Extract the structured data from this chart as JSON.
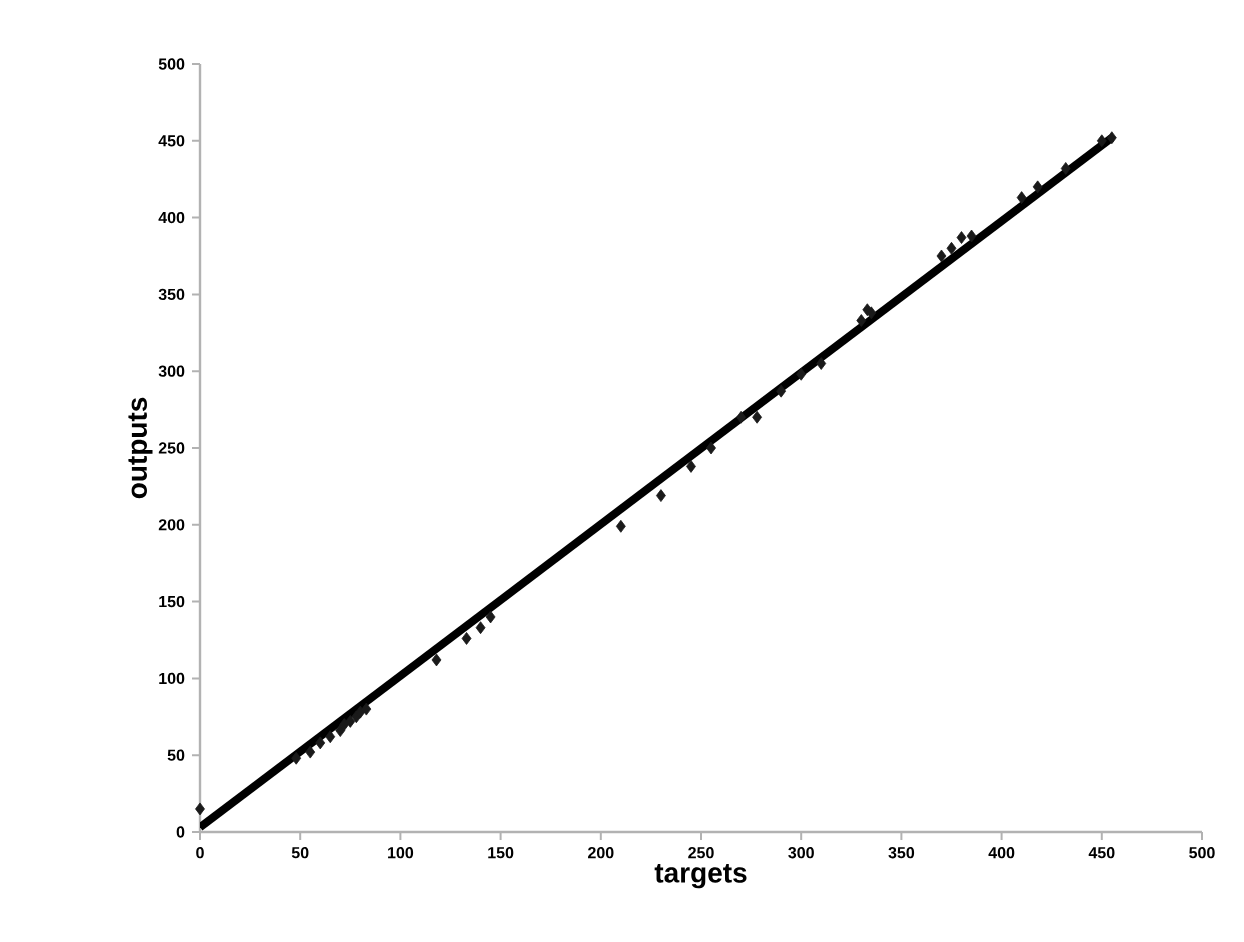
{
  "chart_data": {
    "type": "scatter",
    "xlabel": "targets",
    "ylabel": "outputs",
    "xlim": [
      0,
      500
    ],
    "ylim": [
      0,
      500
    ],
    "xticks": [
      0,
      50,
      100,
      150,
      200,
      250,
      300,
      350,
      400,
      450,
      500
    ],
    "yticks": [
      0,
      50,
      100,
      150,
      200,
      250,
      300,
      350,
      400,
      450,
      500
    ],
    "grid": false,
    "marker": "diamond",
    "series": [
      {
        "color": "#1a1a1a",
        "x": [
          0,
          48,
          55,
          60,
          65,
          70,
          72,
          75,
          78,
          80,
          83,
          118,
          133,
          140,
          145,
          210,
          230,
          245,
          255,
          270,
          278,
          290,
          300,
          310,
          330,
          333,
          335,
          370,
          375,
          380,
          385,
          410,
          418,
          432,
          450,
          455
        ],
        "values": [
          15,
          48,
          52,
          58,
          62,
          66,
          70,
          72,
          75,
          78,
          80,
          112,
          126,
          133,
          140,
          199,
          219,
          238,
          250,
          270,
          270,
          287,
          298,
          305,
          333,
          340,
          338,
          375,
          380,
          387,
          388,
          413,
          420,
          432,
          450,
          452
        ]
      },
      {
        "type": "line",
        "marker": "none",
        "color": "#000000",
        "x": [
          0,
          455
        ],
        "values": [
          3,
          452
        ]
      }
    ]
  }
}
